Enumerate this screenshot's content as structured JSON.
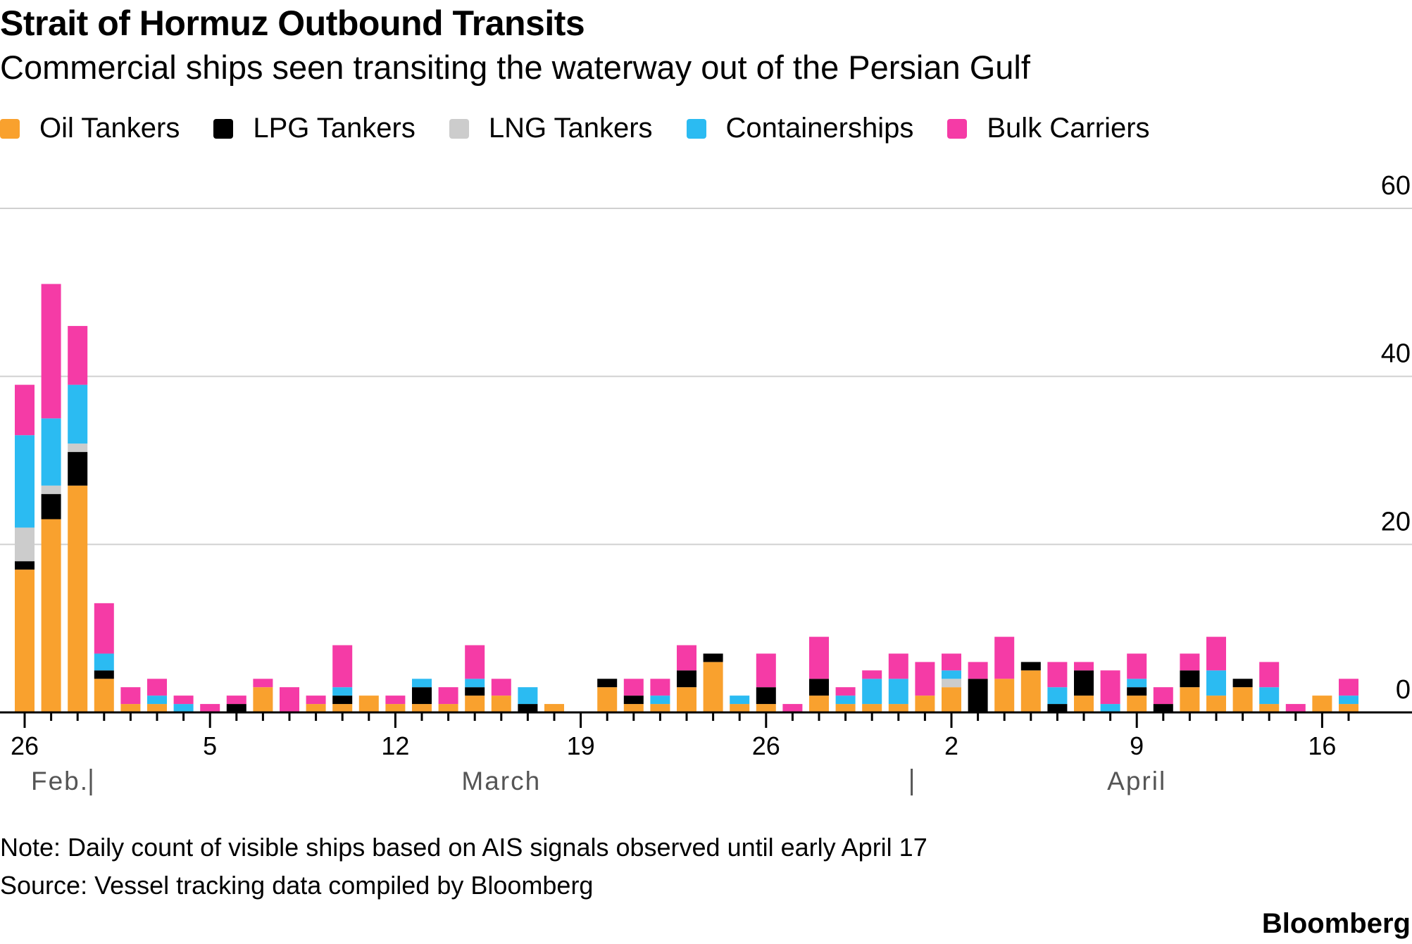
{
  "chart_data": {
    "type": "bar",
    "stacked": true,
    "title": "Strait of Hormuz Outbound Transits",
    "subtitle": "Commercial ships seen transiting the waterway out of the Persian Gulf",
    "xlabel": "",
    "ylabel": "",
    "ylim": [
      0,
      60
    ],
    "yticks": [
      "0",
      "20",
      "40",
      "60"
    ],
    "grid": true,
    "legend_position": "top-left",
    "start_date": "Feb 26",
    "x_tick_labels": [
      {
        "day_index": 0,
        "label": "26"
      },
      {
        "day_index": 7,
        "label": "5"
      },
      {
        "day_index": 14,
        "label": "12"
      },
      {
        "day_index": 21,
        "label": "19"
      },
      {
        "day_index": 28,
        "label": "26"
      },
      {
        "day_index": 35,
        "label": "2"
      },
      {
        "day_index": 42,
        "label": "9"
      },
      {
        "day_index": 49,
        "label": "16"
      }
    ],
    "months": [
      {
        "label": "Feb.",
        "start": 0,
        "end": 3
      },
      {
        "label": "March",
        "start": 3,
        "end": 34
      },
      {
        "label": "April",
        "start": 34,
        "end": 51
      }
    ],
    "categories": [
      "Feb 26",
      "Feb 27",
      "Feb 28",
      "Mar 1",
      "Mar 2",
      "Mar 3",
      "Mar 4",
      "Mar 5",
      "Mar 6",
      "Mar 7",
      "Mar 8",
      "Mar 9",
      "Mar 10",
      "Mar 11",
      "Mar 12",
      "Mar 13",
      "Mar 14",
      "Mar 15",
      "Mar 16",
      "Mar 17",
      "Mar 18",
      "Mar 19",
      "Mar 20",
      "Mar 21",
      "Mar 22",
      "Mar 23",
      "Mar 24",
      "Mar 25",
      "Mar 26",
      "Mar 27",
      "Mar 28",
      "Mar 29",
      "Mar 30",
      "Mar 31",
      "Apr 1",
      "Apr 2",
      "Apr 3",
      "Apr 4",
      "Apr 5",
      "Apr 6",
      "Apr 7",
      "Apr 8",
      "Apr 9",
      "Apr 10",
      "Apr 11",
      "Apr 12",
      "Apr 13",
      "Apr 14",
      "Apr 15",
      "Apr 16",
      "Apr 17"
    ],
    "series": [
      {
        "name": "Oil Tankers",
        "color": "#f9a12e",
        "values": [
          17,
          23,
          27,
          4,
          1,
          1,
          0,
          0,
          0,
          3,
          0,
          1,
          1,
          2,
          1,
          1,
          1,
          2,
          2,
          0,
          1,
          0,
          3,
          1,
          1,
          3,
          6,
          1,
          1,
          0,
          2,
          1,
          1,
          1,
          2,
          3,
          0,
          4,
          5,
          0,
          2,
          0,
          2,
          0,
          3,
          2,
          3,
          1,
          0,
          2,
          1
        ]
      },
      {
        "name": "LPG Tankers",
        "color": "#000000",
        "values": [
          1,
          3,
          4,
          1,
          0,
          0,
          0,
          0,
          1,
          0,
          0,
          0,
          1,
          0,
          0,
          2,
          0,
          1,
          0,
          1,
          0,
          0,
          1,
          1,
          0,
          2,
          1,
          0,
          2,
          0,
          2,
          0,
          0,
          0,
          0,
          0,
          4,
          0,
          1,
          1,
          3,
          0,
          1,
          1,
          2,
          0,
          1,
          0,
          0,
          0,
          0
        ]
      },
      {
        "name": "LNG Tankers",
        "color": "#cccccc",
        "values": [
          4,
          1,
          1,
          0,
          0,
          0,
          0,
          0,
          0,
          0,
          0,
          0,
          0,
          0,
          0,
          0,
          0,
          0,
          0,
          0,
          0,
          0,
          0,
          0,
          0,
          0,
          0,
          0,
          0,
          0,
          0,
          0,
          0,
          0,
          0,
          1,
          0,
          0,
          0,
          0,
          0,
          0,
          0,
          0,
          0,
          0,
          0,
          0,
          0,
          0,
          0
        ]
      },
      {
        "name": "Containerships",
        "color": "#2bbbf2",
        "values": [
          11,
          8,
          7,
          2,
          0,
          1,
          1,
          0,
          0,
          0,
          0,
          0,
          1,
          0,
          0,
          1,
          0,
          1,
          0,
          2,
          0,
          0,
          0,
          0,
          1,
          0,
          0,
          1,
          0,
          0,
          0,
          1,
          3,
          3,
          0,
          1,
          0,
          0,
          0,
          2,
          0,
          1,
          1,
          0,
          0,
          3,
          0,
          2,
          0,
          0,
          1
        ]
      },
      {
        "name": "Bulk Carriers",
        "color": "#f53ba6",
        "values": [
          6,
          16,
          7,
          6,
          2,
          2,
          1,
          1,
          1,
          1,
          3,
          1,
          5,
          0,
          1,
          0,
          2,
          4,
          2,
          0,
          0,
          0,
          0,
          2,
          2,
          3,
          0,
          0,
          4,
          1,
          5,
          1,
          1,
          3,
          4,
          2,
          2,
          5,
          0,
          3,
          1,
          4,
          3,
          2,
          2,
          4,
          0,
          3,
          1,
          0,
          2
        ]
      }
    ],
    "note": "Note: Daily count of visible ships based on AIS signals observed until early April 17",
    "source": "Source: Vessel tracking data compiled by Bloomberg",
    "brand": "Bloomberg"
  }
}
